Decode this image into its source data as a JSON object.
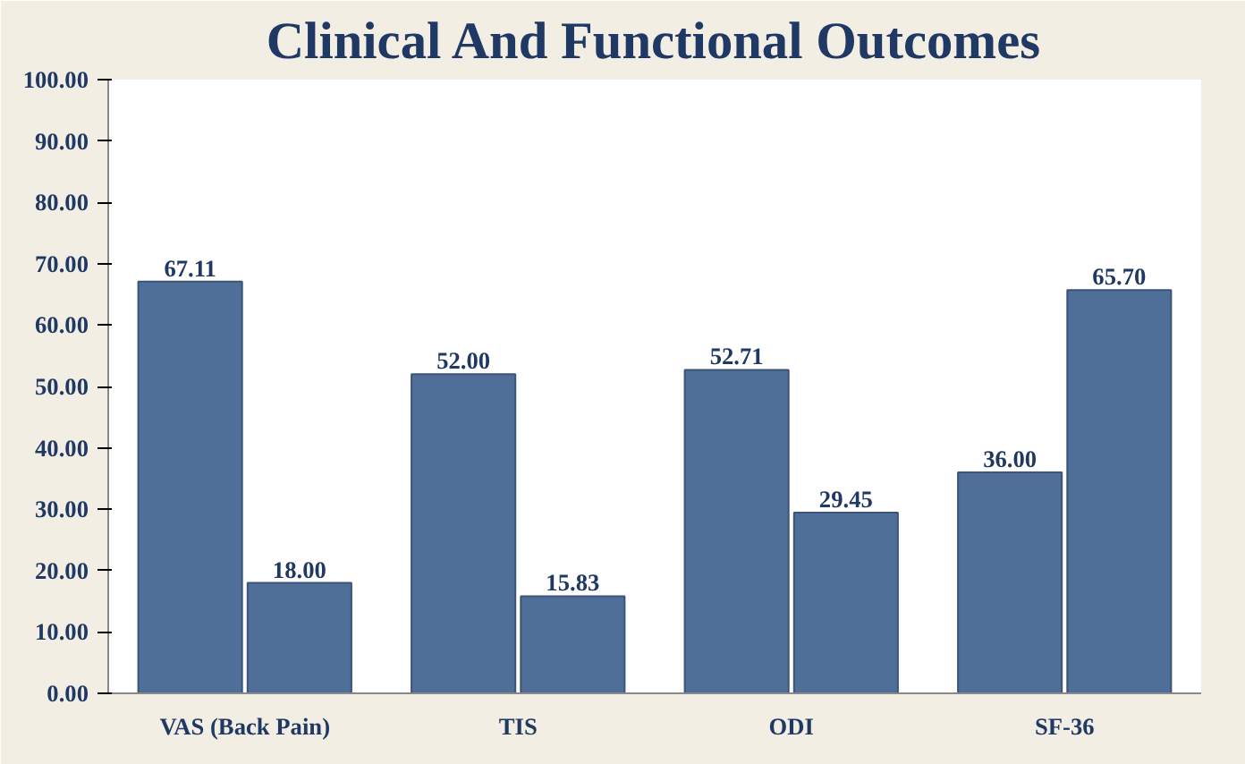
{
  "chart_data": {
    "type": "bar",
    "title": "Clinical And Functional Outcomes",
    "categories": [
      "VAS (Back Pain)",
      "TIS",
      "ODI",
      "SF-36"
    ],
    "series": [
      {
        "color": "#4f6e98",
        "values": [
          67.11,
          52.0,
          52.71,
          36.0
        ],
        "value_labels": [
          "67.11",
          "52.00",
          "52.71",
          "36.00"
        ]
      },
      {
        "color": "#4f6e98",
        "values": [
          18.0,
          15.83,
          29.45,
          65.7
        ],
        "value_labels": [
          "18.00",
          "15.83",
          "29.45",
          "65.70"
        ]
      }
    ],
    "ylim": [
      0,
      100
    ],
    "yticks": [
      {
        "value": 0,
        "label": "0.00"
      },
      {
        "value": 10,
        "label": "10.00"
      },
      {
        "value": 20,
        "label": "20.00"
      },
      {
        "value": 30,
        "label": "30.00"
      },
      {
        "value": 40,
        "label": "40.00"
      },
      {
        "value": 50,
        "label": "50.00"
      },
      {
        "value": 60,
        "label": "60.00"
      },
      {
        "value": 70,
        "label": "70.00"
      },
      {
        "value": 80,
        "label": "80.00"
      },
      {
        "value": 90,
        "label": "90.00"
      },
      {
        "value": 100,
        "label": "100.00"
      }
    ],
    "grid": false
  }
}
